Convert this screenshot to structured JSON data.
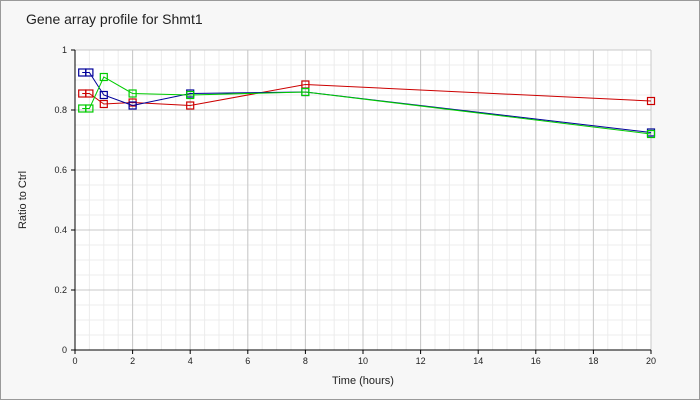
{
  "chart_data": {
    "type": "line",
    "title": "Gene array profile for Shmt1",
    "xlabel": "Time (hours)",
    "ylabel": "Ratio to Ctrl",
    "xlim": [
      0,
      20
    ],
    "ylim": [
      0,
      1
    ],
    "x_ticks": [
      0,
      2,
      4,
      6,
      8,
      10,
      12,
      14,
      16,
      18,
      20
    ],
    "y_ticks": [
      0,
      0.2,
      0.4,
      0.6,
      0.8,
      1
    ],
    "y_tick_labels": [
      "0",
      "0.2",
      "0.4",
      "0.6",
      "0.8",
      "1"
    ],
    "grid": true,
    "minor_grid": true,
    "legend": "none",
    "marker": "square",
    "colors": {
      "background": "#f7f7f7",
      "plot_background": "#ffffff",
      "major_grid": "#c8c8c8",
      "minor_grid": "#ececec",
      "axis": "#000000"
    },
    "series": [
      {
        "color": "#cc0000",
        "x": [
          0.25,
          0.5,
          1,
          2,
          4,
          8,
          20
        ],
        "y": [
          0.855,
          0.855,
          0.82,
          0.825,
          0.815,
          0.885,
          0.83
        ]
      },
      {
        "color": "#000099",
        "x": [
          0.25,
          0.5,
          1,
          2,
          4,
          8,
          20
        ],
        "y": [
          0.925,
          0.925,
          0.85,
          0.815,
          0.855,
          0.86,
          0.725
        ]
      },
      {
        "color": "#00cc00",
        "x": [
          0.25,
          0.5,
          1,
          2,
          4,
          8,
          20
        ],
        "y": [
          0.805,
          0.805,
          0.91,
          0.855,
          0.85,
          0.86,
          0.72
        ]
      }
    ]
  }
}
